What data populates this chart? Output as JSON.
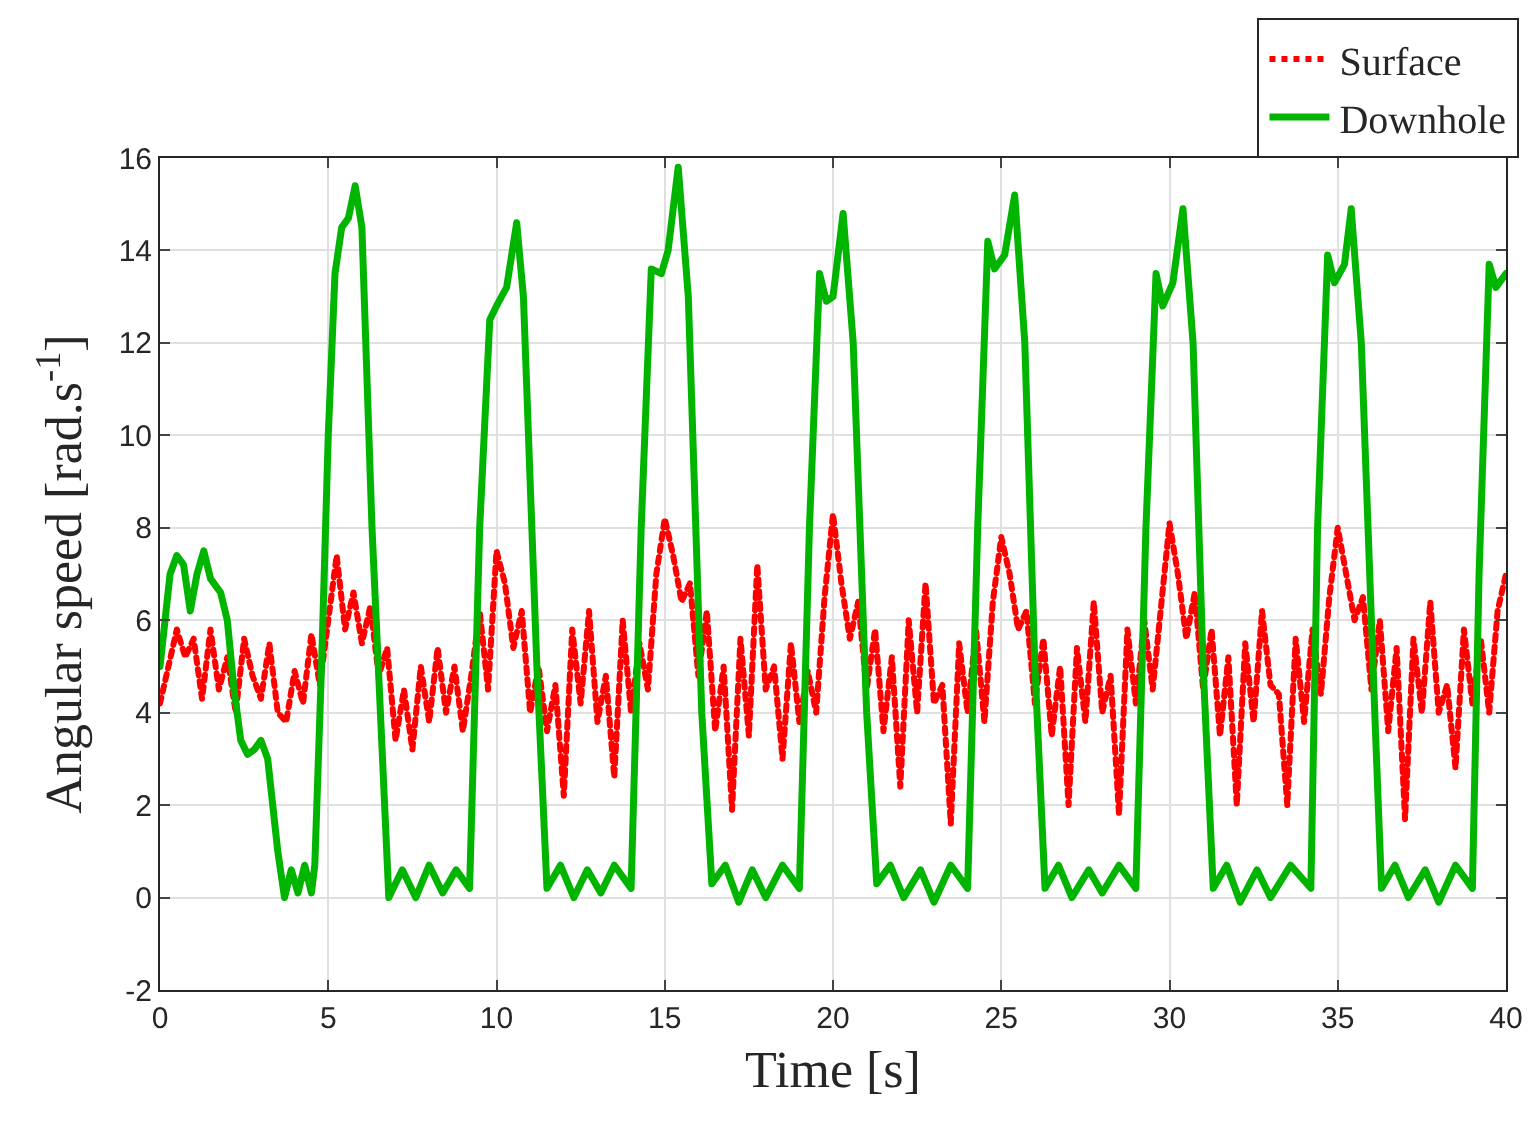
{
  "chart_data": {
    "type": "line",
    "xlabel": "Time [s]",
    "ylabel": "Angular speed [rad.s$^{-1}$]",
    "xlim": [
      0,
      40
    ],
    "ylim": [
      -2,
      16
    ],
    "xticks": [
      0,
      5,
      10,
      15,
      20,
      25,
      30,
      35,
      40
    ],
    "yticks": [
      -2,
      0,
      2,
      4,
      6,
      8,
      10,
      12,
      14,
      16
    ],
    "grid": true,
    "legend": "top right",
    "series": [
      {
        "name": "Surface",
        "color": "#ff0000",
        "line_style": "dotted",
        "x": [
          0,
          0.25,
          0.5,
          0.75,
          1,
          1.25,
          1.5,
          1.75,
          2,
          2.25,
          2.5,
          2.75,
          3,
          3.25,
          3.5,
          3.75,
          4,
          4.25,
          4.5,
          4.75,
          5,
          5.25,
          5.5,
          5.75,
          6,
          6.25,
          6.5,
          6.75,
          7,
          7.25,
          7.5,
          7.75,
          8,
          8.25,
          8.5,
          8.75,
          9,
          9.25,
          9.5,
          9.75,
          10,
          10.25,
          10.5,
          10.75,
          11,
          11.25,
          11.5,
          11.75,
          12,
          12.25,
          12.5,
          12.75,
          13,
          13.25,
          13.5,
          13.75,
          14,
          14.25,
          14.5,
          14.75,
          15,
          15.25,
          15.5,
          15.75,
          16,
          16.25,
          16.5,
          16.75,
          17,
          17.25,
          17.5,
          17.75,
          18,
          18.25,
          18.5,
          18.75,
          19,
          19.25,
          19.5,
          19.75,
          20,
          20.25,
          20.5,
          20.75,
          21,
          21.25,
          21.5,
          21.75,
          22,
          22.25,
          22.5,
          22.75,
          23,
          23.25,
          23.5,
          23.75,
          24,
          24.25,
          24.5,
          24.75,
          25,
          25.25,
          25.5,
          25.75,
          26,
          26.25,
          26.5,
          26.75,
          27,
          27.25,
          27.5,
          27.75,
          28,
          28.25,
          28.5,
          28.75,
          29,
          29.25,
          29.5,
          29.75,
          30,
          30.25,
          30.5,
          30.75,
          31,
          31.25,
          31.5,
          31.75,
          32,
          32.25,
          32.5,
          32.75,
          33,
          33.25,
          33.5,
          33.75,
          34,
          34.25,
          34.5,
          34.75,
          35,
          35.25,
          35.5,
          35.75,
          36,
          36.25,
          36.5,
          36.75,
          37,
          37.25,
          37.5,
          37.75,
          38,
          38.25,
          38.5,
          38.75,
          39,
          39.25,
          39.5,
          39.75,
          40
        ],
        "values": [
          4.2,
          5.0,
          5.8,
          5.2,
          5.6,
          4.3,
          5.8,
          4.5,
          5.2,
          4.0,
          5.6,
          4.8,
          4.3,
          5.5,
          4.0,
          3.8,
          4.9,
          4.2,
          5.7,
          4.6,
          6.0,
          7.4,
          5.8,
          6.6,
          5.5,
          6.3,
          4.8,
          5.4,
          3.4,
          4.5,
          3.2,
          5.0,
          3.8,
          5.4,
          4.0,
          5.0,
          3.6,
          4.8,
          6.2,
          4.5,
          7.5,
          6.8,
          5.4,
          6.2,
          4.0,
          5.0,
          3.6,
          4.6,
          2.2,
          5.8,
          4.2,
          6.2,
          3.8,
          4.8,
          2.6,
          6.0,
          4.0,
          5.5,
          4.5,
          7.0,
          8.2,
          7.4,
          6.4,
          6.8,
          4.8,
          6.2,
          3.6,
          5.0,
          1.9,
          5.6,
          3.5,
          7.2,
          4.5,
          5.0,
          3.0,
          5.5,
          3.8,
          4.9,
          4.0,
          6.5,
          8.3,
          6.8,
          5.6,
          6.4,
          4.5,
          5.8,
          3.6,
          5.2,
          2.4,
          6.0,
          4.0,
          6.8,
          4.2,
          4.6,
          1.6,
          5.5,
          4.0,
          5.8,
          3.8,
          6.4,
          7.8,
          7.0,
          5.8,
          6.2,
          4.2,
          5.6,
          3.5,
          5.0,
          2.0,
          5.4,
          3.8,
          6.4,
          4.0,
          4.8,
          1.8,
          5.8,
          4.2,
          6.0,
          4.5,
          6.3,
          8.1,
          7.0,
          5.6,
          6.6,
          4.5,
          5.8,
          3.5,
          5.2,
          2.0,
          5.5,
          3.8,
          6.2,
          4.6,
          4.4,
          2.0,
          5.6,
          3.8,
          5.8,
          4.4,
          6.5,
          8.0,
          7.0,
          6.0,
          6.5,
          4.5,
          6.0,
          3.6,
          5.4,
          1.7,
          5.6,
          4.0,
          6.4,
          4.0,
          4.6,
          2.8,
          5.8,
          4.2,
          5.6,
          4.0,
          6.2,
          7.0
        ]
      },
      {
        "name": "Downhole",
        "color": "#00b400",
        "line_style": "solid",
        "x": [
          0,
          0.3,
          0.5,
          0.7,
          0.9,
          1.1,
          1.3,
          1.5,
          1.8,
          2.0,
          2.2,
          2.4,
          2.6,
          2.8,
          3.0,
          3.2,
          3.5,
          3.7,
          3.9,
          4.1,
          4.3,
          4.5,
          4.6,
          4.8,
          5.0,
          5.2,
          5.4,
          5.6,
          5.8,
          6.0,
          6.3,
          6.8,
          7.2,
          7.6,
          8.0,
          8.4,
          8.8,
          9.2,
          9.5,
          9.8,
          10.0,
          10.3,
          10.6,
          10.8,
          11.2,
          11.5,
          11.9,
          12.3,
          12.7,
          13.1,
          13.5,
          14.0,
          14.3,
          14.6,
          14.9,
          15.1,
          15.4,
          15.7,
          16.1,
          16.4,
          16.8,
          17.2,
          17.6,
          18.0,
          18.5,
          19.0,
          19.3,
          19.6,
          19.8,
          20.0,
          20.3,
          20.6,
          21.0,
          21.3,
          21.7,
          22.1,
          22.6,
          23.0,
          23.5,
          24.0,
          24.3,
          24.6,
          24.8,
          25.1,
          25.4,
          25.7,
          26.0,
          26.3,
          26.7,
          27.1,
          27.6,
          28.0,
          28.5,
          29.0,
          29.3,
          29.6,
          29.8,
          30.1,
          30.4,
          30.7,
          31.0,
          31.3,
          31.7,
          32.1,
          32.6,
          33.0,
          33.6,
          34.2,
          34.4,
          34.7,
          34.9,
          35.2,
          35.4,
          35.7,
          36.1,
          36.3,
          36.7,
          37.1,
          37.6,
          38.0,
          38.5,
          39.0,
          39.2,
          39.5,
          39.7,
          40
        ],
        "values": [
          5.0,
          7.0,
          7.4,
          7.2,
          6.2,
          7.0,
          7.5,
          6.9,
          6.6,
          6.0,
          4.5,
          3.4,
          3.1,
          3.2,
          3.4,
          3.0,
          1.0,
          0.0,
          0.6,
          0.1,
          0.7,
          0.1,
          0.7,
          5.0,
          10.0,
          13.5,
          14.5,
          14.7,
          15.4,
          14.5,
          8.0,
          0.0,
          0.6,
          0.0,
          0.7,
          0.1,
          0.6,
          0.2,
          8.0,
          12.5,
          12.8,
          13.2,
          14.6,
          13.0,
          5.0,
          0.2,
          0.7,
          0.0,
          0.6,
          0.1,
          0.7,
          0.2,
          8.0,
          13.6,
          13.5,
          14.0,
          15.8,
          13.0,
          4.0,
          0.3,
          0.7,
          -0.1,
          0.6,
          0.0,
          0.7,
          0.2,
          8.0,
          13.5,
          12.9,
          13.0,
          14.8,
          12.0,
          4.0,
          0.3,
          0.7,
          0.0,
          0.6,
          -0.1,
          0.7,
          0.2,
          8.0,
          14.2,
          13.6,
          13.9,
          15.2,
          12.0,
          5.0,
          0.2,
          0.7,
          0.0,
          0.6,
          0.1,
          0.7,
          0.2,
          8.0,
          13.5,
          12.8,
          13.3,
          14.9,
          12.0,
          5.0,
          0.2,
          0.7,
          -0.1,
          0.6,
          0.0,
          0.7,
          0.2,
          8.0,
          13.9,
          13.3,
          13.7,
          14.9,
          12.0,
          4.0,
          0.2,
          0.7,
          0.0,
          0.6,
          -0.1,
          0.7,
          0.2,
          7.0,
          13.7,
          13.2,
          13.5
        ]
      }
    ]
  }
}
